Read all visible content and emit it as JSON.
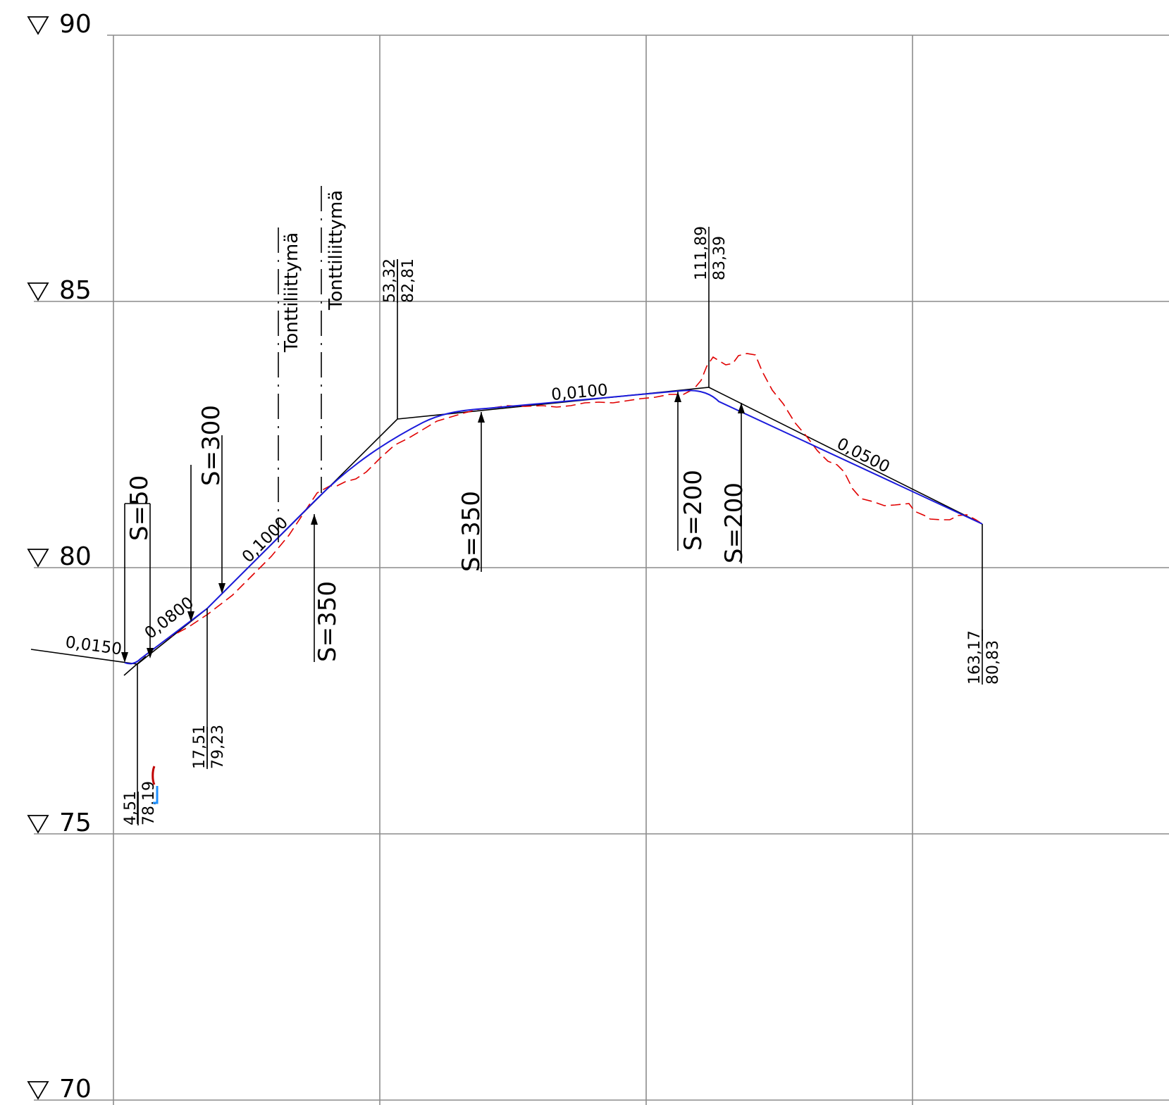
{
  "colors": {
    "background": "#ffffff",
    "grid": "#8c8c8c",
    "tangent_lines": "#000000",
    "design_profile": "#1a1adb",
    "ground_profile": "#e00000",
    "marker_red": "#c00000",
    "marker_blue": "#1e90ff"
  },
  "elevation_marks": [
    {
      "value": 90,
      "label": "90",
      "icon": "elevation-triangle-icon"
    },
    {
      "value": 85,
      "label": "85",
      "icon": "elevation-triangle-icon"
    },
    {
      "value": 80,
      "label": "80",
      "icon": "elevation-triangle-icon"
    },
    {
      "value": 75,
      "label": "75",
      "icon": "elevation-triangle-icon"
    },
    {
      "value": 70,
      "label": "70",
      "icon": "elevation-triangle-icon"
    }
  ],
  "grades": [
    {
      "label": "0,0150"
    },
    {
      "label": "0,0800"
    },
    {
      "label": "0,1000"
    },
    {
      "label": "0,0100"
    },
    {
      "label": "0,0500"
    }
  ],
  "vertical_curves": [
    {
      "label": "S=50"
    },
    {
      "label": "S=300"
    },
    {
      "label": "S=350"
    },
    {
      "label": "S=350"
    },
    {
      "label": "S=200"
    },
    {
      "label": "S=200"
    }
  ],
  "pvi": [
    {
      "station": "4,51",
      "elevation": "78,19"
    },
    {
      "station": "17,51",
      "elevation": "79,23"
    },
    {
      "station": "53,32",
      "elevation": "82,81"
    },
    {
      "station": "111,89",
      "elevation": "83,39"
    },
    {
      "station": "163,17",
      "elevation": "80,83"
    }
  ],
  "junctions": [
    {
      "label": "Tonttiliittymä"
    },
    {
      "label": "Tonttiliittymä"
    }
  ]
}
